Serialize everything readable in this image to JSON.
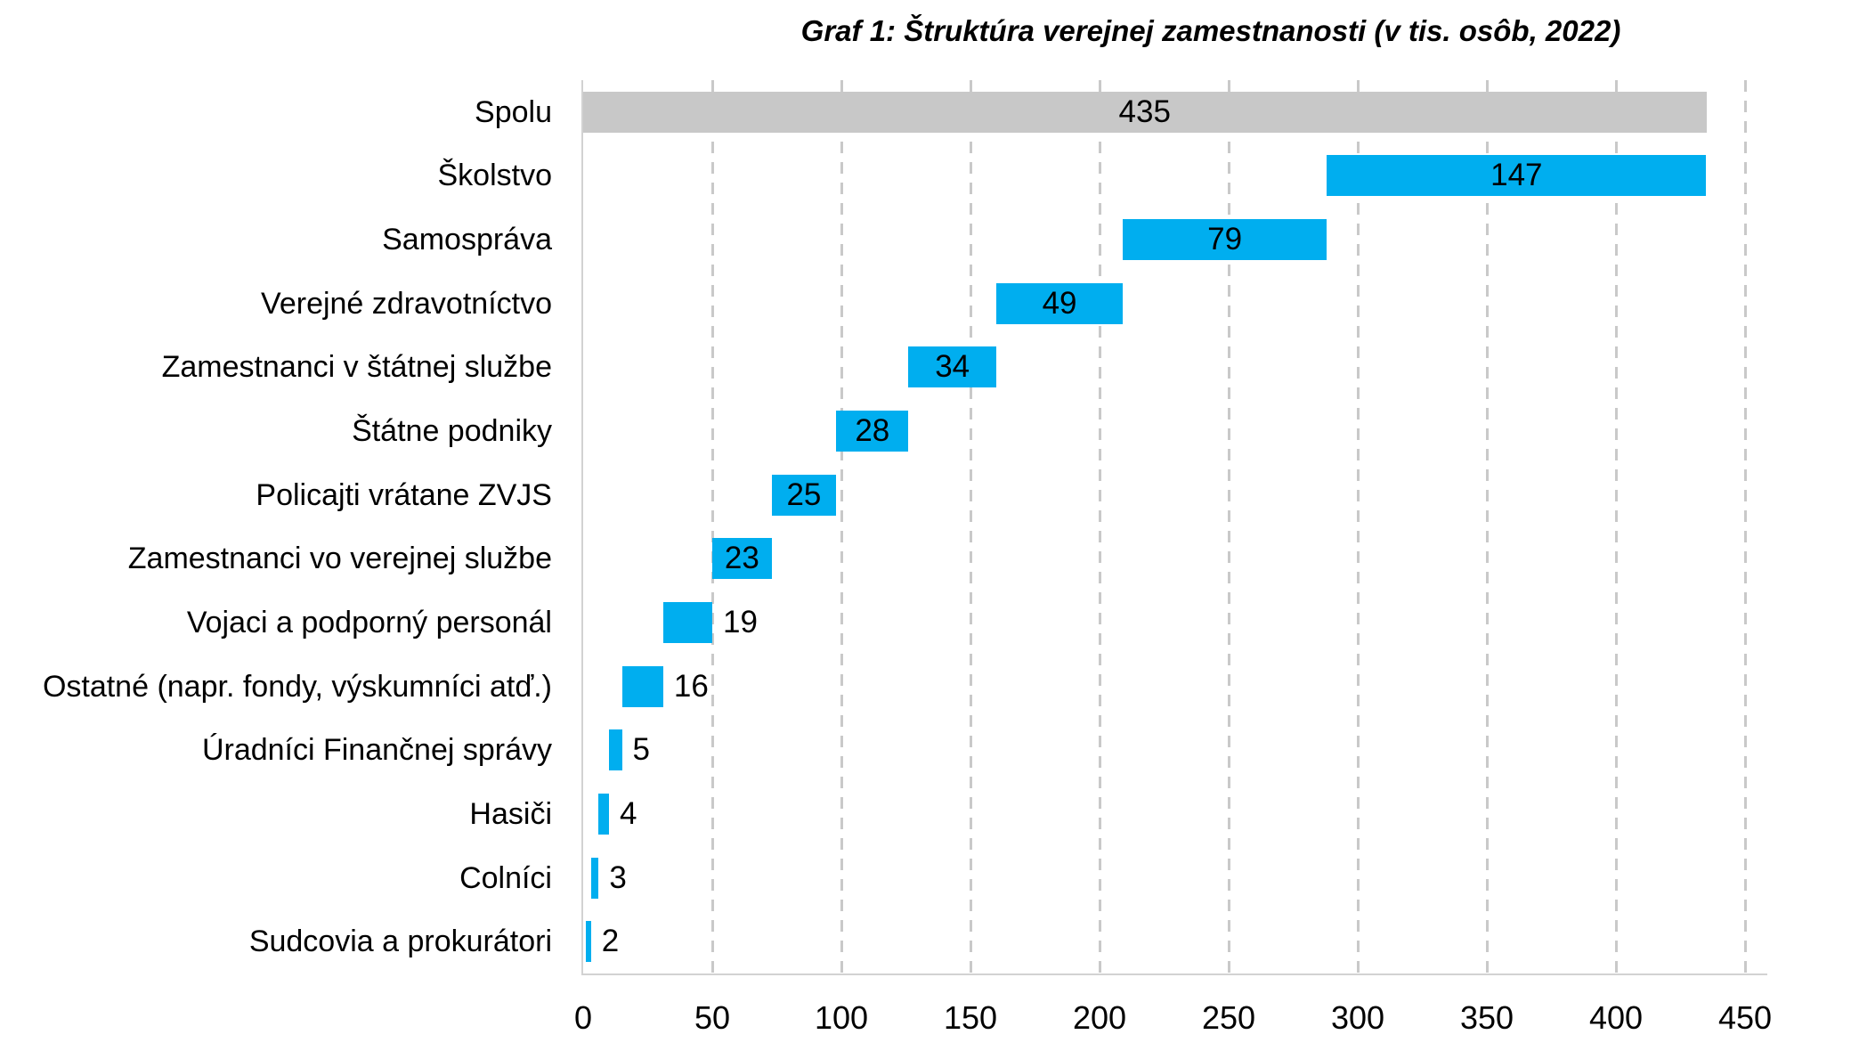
{
  "title": "Graf 1: Štruktúra verejnej zamestnanosti (v tis. osôb, 2022)",
  "chart_data": {
    "type": "bar",
    "subtype": "horizontal-waterfall",
    "title": "Graf 1: Štruktúra verejnej zamestnanosti (v tis. osôb, 2022)",
    "xlabel": "",
    "ylabel": "",
    "xlim": [
      0,
      450
    ],
    "x_ticks": [
      0,
      50,
      100,
      150,
      200,
      250,
      300,
      350,
      400,
      450
    ],
    "grid": "vertical-dashed",
    "legend": "none",
    "categories": [
      "Spolu",
      "Školstvo",
      "Samospráva",
      "Verejné zdravotníctvo",
      "Zamestnanci v štátnej službe",
      "Štátne podniky",
      "Policajti vrátane ZVJS",
      "Zamestnanci vo verejnej službe",
      "Vojaci a podporný personál",
      "Ostatné (napr. fondy, výskumníci atď.)",
      "Úradníci Finančnej správy",
      "Hasiči",
      "Colníci",
      "Sudcovia a prokurátori"
    ],
    "values": [
      435,
      147,
      79,
      49,
      34,
      28,
      25,
      23,
      19,
      16,
      5,
      4,
      3,
      2
    ],
    "bar_starts": [
      0,
      288,
      209,
      160,
      126,
      98,
      73,
      50,
      31,
      15,
      10,
      6,
      3,
      1
    ],
    "value_label_inside": [
      true,
      true,
      true,
      true,
      true,
      true,
      true,
      true,
      false,
      false,
      false,
      false,
      false,
      false
    ],
    "bar_types": [
      "total",
      "segment",
      "segment",
      "segment",
      "segment",
      "segment",
      "segment",
      "segment",
      "segment",
      "segment",
      "segment",
      "segment",
      "segment",
      "segment"
    ],
    "colors": {
      "total_bar": "#C8C8C8",
      "segment_bar": "#00AEEF",
      "gridline": "#C9C9C9",
      "axis_line": "#D2D2D2",
      "text": "#000000"
    }
  }
}
